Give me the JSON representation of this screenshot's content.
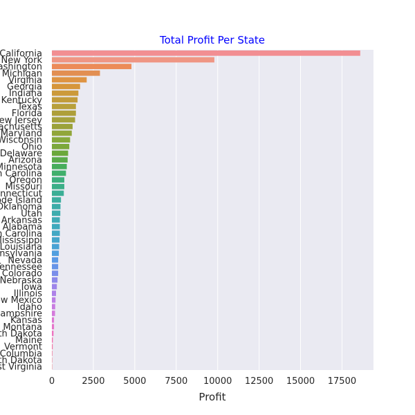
{
  "chart_data": {
    "type": "bar",
    "orientation": "horizontal",
    "title": "Total Profit Per State",
    "title_color": "#0000ff",
    "xlabel": "Profit",
    "ylabel": "",
    "xlim": [
      0,
      19400
    ],
    "xticks": [
      0,
      2500,
      5000,
      7500,
      10000,
      12500,
      15000,
      17500
    ],
    "grid": true,
    "background": "#eaeaf2",
    "categories": [
      "California",
      "New York",
      "Washington",
      "Michigan",
      "Virginia",
      "Georgia",
      "Indiana",
      "Kentucky",
      "Texas",
      "Florida",
      "New Jersey",
      "Massachusetts",
      "Maryland",
      "Wisconsin",
      "Ohio",
      "Delaware",
      "Arizona",
      "Minnesota",
      "North Carolina",
      "Oregon",
      "Missouri",
      "Connecticut",
      "Rhode Island",
      "Oklahoma",
      "Utah",
      "Arkansas",
      "Alabama",
      "South Carolina",
      "Mississippi",
      "Louisiana",
      "Pennsylvania",
      "Nevada",
      "Tennessee",
      "Colorado",
      "Nebraska",
      "Iowa",
      "Illinois",
      "New Mexico",
      "Idaho",
      "New Hampshire",
      "Kansas",
      "Montana",
      "South Dakota",
      "Maine",
      "Vermont",
      "District of Columbia",
      "North Dakota",
      "West Virginia"
    ],
    "values": [
      18600,
      9800,
      4800,
      2900,
      2100,
      1700,
      1600,
      1550,
      1450,
      1450,
      1400,
      1250,
      1200,
      1100,
      1050,
      980,
      950,
      900,
      850,
      750,
      750,
      720,
      550,
      520,
      510,
      480,
      480,
      480,
      460,
      440,
      420,
      380,
      380,
      380,
      340,
      300,
      250,
      220,
      200,
      190,
      130,
      130,
      100,
      60,
      50,
      30,
      20,
      10
    ],
    "colors": [
      "#f28e92",
      "#ef9684",
      "#ec8b58",
      "#e28f52",
      "#de9443",
      "#d6963b",
      "#cc9a3a",
      "#c29c3a",
      "#b8a03a",
      "#ae9f3a",
      "#a5a23c",
      "#9ba23a",
      "#91a63a",
      "#87a93b",
      "#7ca83b",
      "#6ba83b",
      "#5aab4a",
      "#46ad5b",
      "#40af6c",
      "#3daf7e",
      "#3caf88",
      "#3aae95",
      "#3bae9f",
      "#3cada8",
      "#3cacae",
      "#3eabb6",
      "#3faabd",
      "#42a8c4",
      "#45a6cb",
      "#4aa3d4",
      "#519fdf",
      "#5b9ae6",
      "#6795e8",
      "#7a8eea",
      "#8e89ea",
      "#9e85ea",
      "#ad82e8",
      "#bc7fe5",
      "#c97ce1",
      "#d47adb",
      "#de78d4",
      "#e676cb",
      "#ee74c0",
      "#f274b2",
      "#f276a6",
      "#f27898",
      "#f27b8f",
      "#f28e92"
    ]
  }
}
